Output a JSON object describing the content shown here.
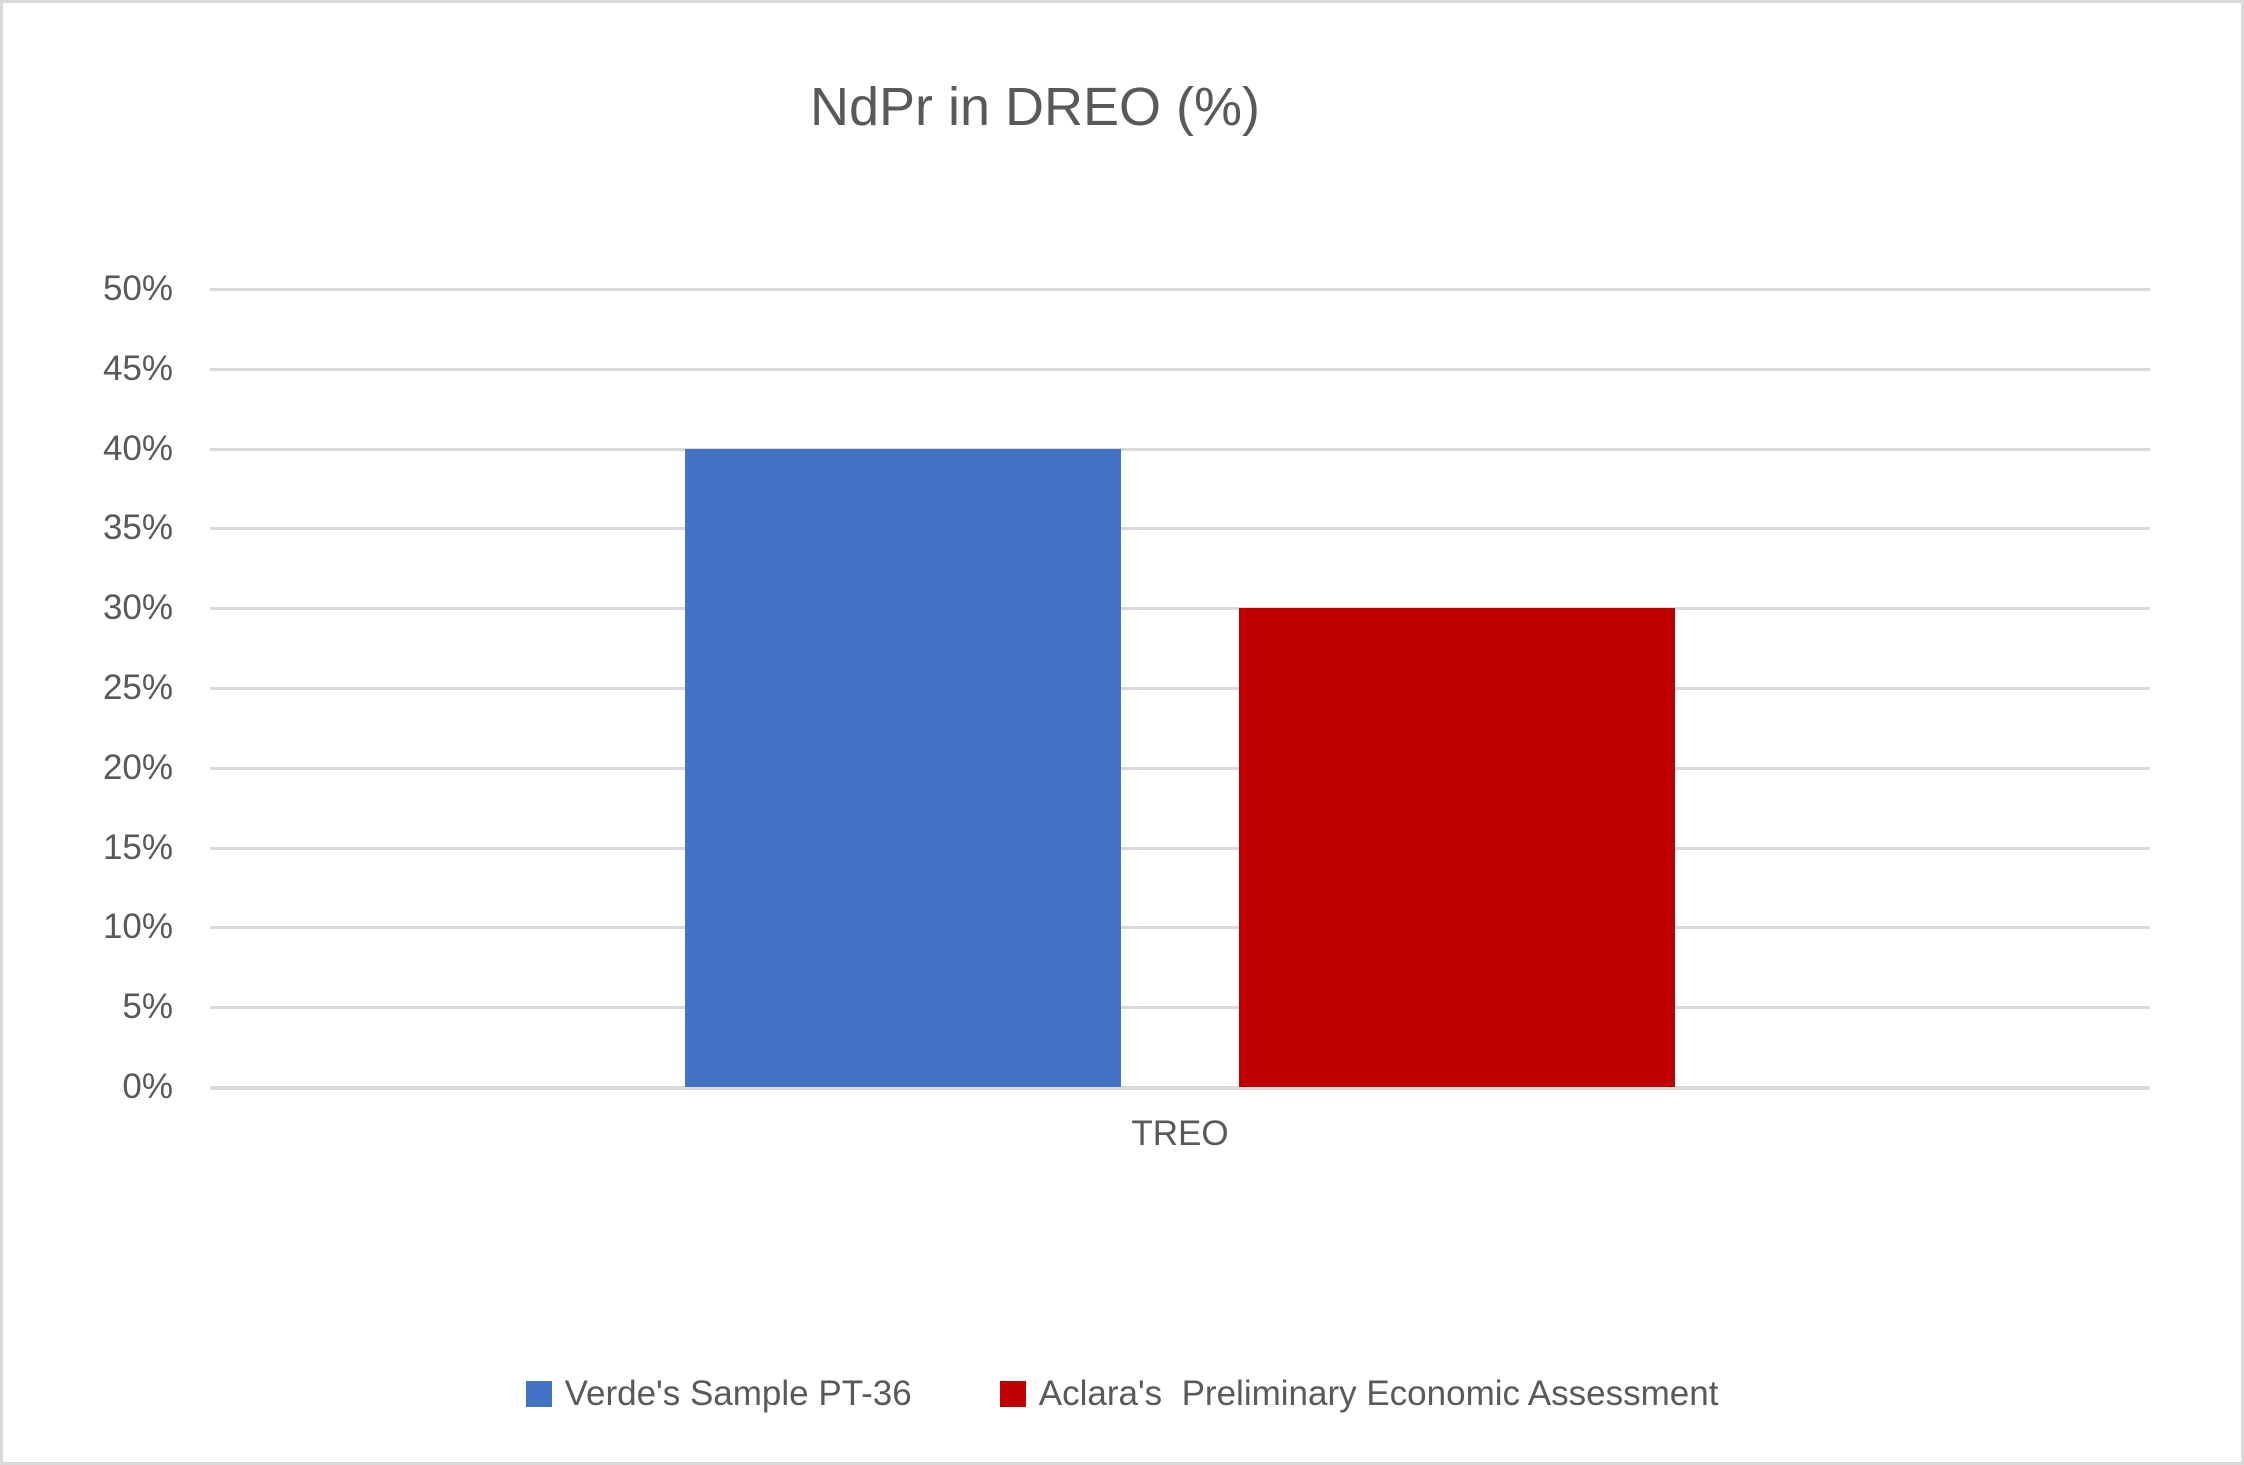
{
  "chart_data": {
    "type": "bar",
    "title": "NdPr in DREO (%)",
    "categories": [
      "TREO"
    ],
    "series": [
      {
        "name": "Verde's Sample PT-36",
        "values": [
          40
        ],
        "color": "#4472C4"
      },
      {
        "name": "Aclara's  Preliminary Economic Assessment",
        "values": [
          30
        ],
        "color": "#C00000"
      }
    ],
    "xlabel": "",
    "ylabel": "",
    "ylim": [
      0,
      50
    ],
    "ytick_step": 5,
    "ytick_labels": [
      "0%",
      "5%",
      "10%",
      "15%",
      "20%",
      "25%",
      "30%",
      "35%",
      "40%",
      "45%",
      "50%"
    ],
    "grid": true,
    "legend_position": "bottom",
    "text_color": "#595959",
    "gridline_color": "#D9D9D9"
  }
}
